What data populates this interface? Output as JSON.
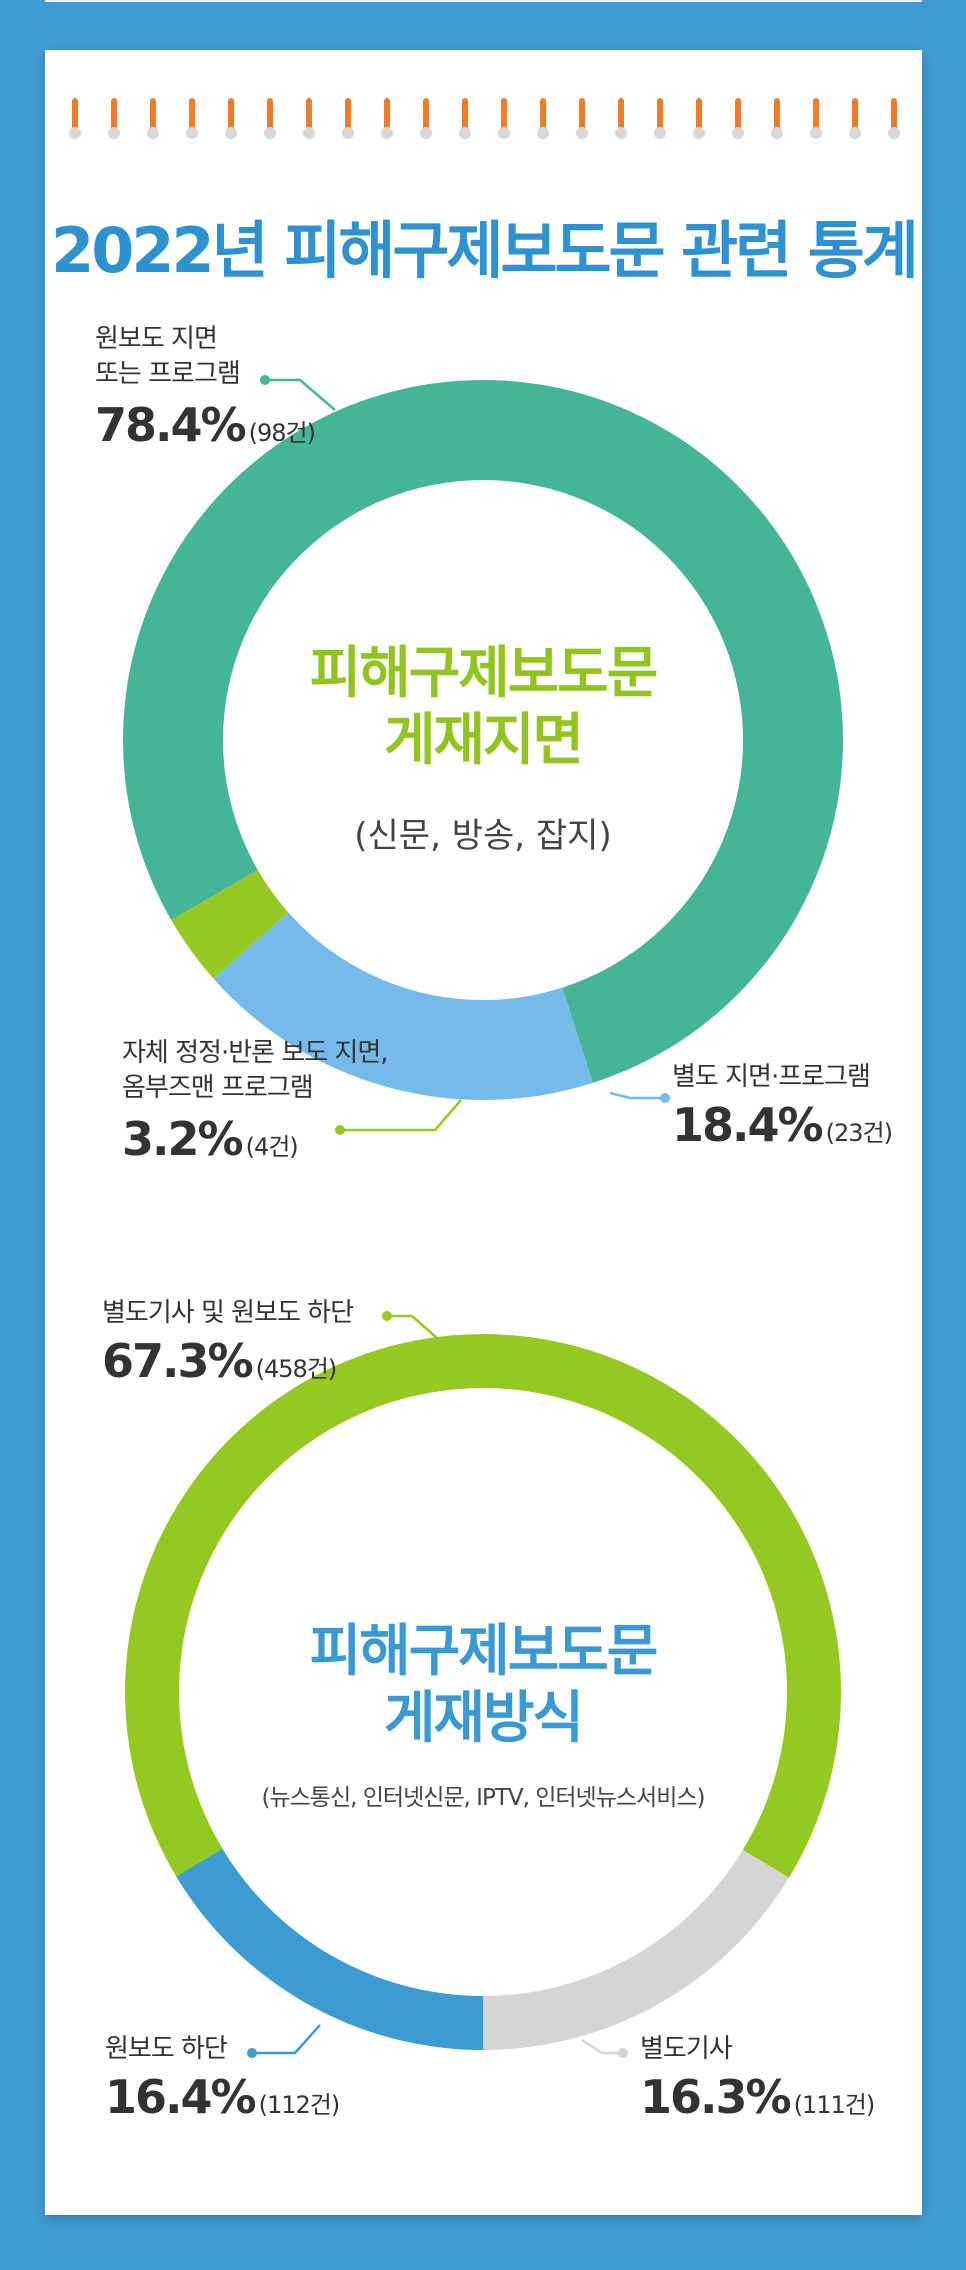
{
  "title": "2022년 피해구제보도문 관련 통계",
  "colors": {
    "teal": "#44b596",
    "lightblue": "#74bbec",
    "green": "#95c922",
    "blue": "#3d9bd2",
    "gray": "#d5d5d5",
    "ring": "#ee7d2b"
  },
  "chart_data": [
    {
      "type": "pie",
      "donut": true,
      "center_title": [
        "피해구제보도문",
        "게재지면"
      ],
      "center_subtitle": "(신문, 방송, 잡지)",
      "slices": [
        {
          "label_lines": [
            "원보도 지면",
            "또는 프로그램"
          ],
          "percent": 78.4,
          "percent_text": "78.4%",
          "count_text": "(98건)",
          "color": "#44b596"
        },
        {
          "label_lines": [
            "별도 지면·프로그램"
          ],
          "percent": 18.4,
          "percent_text": "18.4%",
          "count_text": "(23건)",
          "color": "#74bbec"
        },
        {
          "label_lines": [
            "자체 정정·반론 보도 지면,",
            "옴부즈맨 프로그램"
          ],
          "percent": 3.2,
          "percent_text": "3.2%",
          "count_text": "(4건)",
          "color": "#95c922"
        }
      ]
    },
    {
      "type": "pie",
      "donut": true,
      "center_title": [
        "피해구제보도문",
        "게재방식"
      ],
      "center_subtitle": "(뉴스통신, 인터넷신문, IPTV, 인터넷뉴스서비스)",
      "slices": [
        {
          "label_lines": [
            "별도기사 및 원보도 하단"
          ],
          "percent": 67.3,
          "percent_text": "67.3%",
          "count_text": "(458건)",
          "color": "#95c922"
        },
        {
          "label_lines": [
            "별도기사"
          ],
          "percent": 16.3,
          "percent_text": "16.3%",
          "count_text": "(111건)",
          "color": "#d5d5d5"
        },
        {
          "label_lines": [
            "원보도 하단"
          ],
          "percent": 16.4,
          "percent_text": "16.4%",
          "count_text": "(112건)",
          "color": "#3d9bd2"
        }
      ]
    }
  ]
}
